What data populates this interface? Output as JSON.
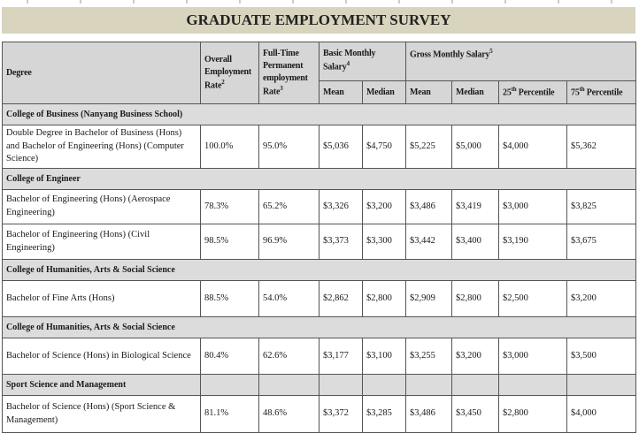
{
  "title": "GRADUATE EMPLOYMENT SURVEY",
  "headers": {
    "degree": "Degree",
    "overall": "Overall Employment Rate",
    "overall_sup": "2",
    "fulltime": "Full-Time Permanent employment Rate",
    "fulltime_sup": "3",
    "basic": "Basic Monthly Salary",
    "basic_sup": "4",
    "gross": "Gross Monthly Salary",
    "gross_sup": "5",
    "mean": "Mean",
    "median": "Median",
    "p25": "25",
    "p75": "75",
    "th": "th",
    "percentile": " Percentile"
  },
  "sections": [
    {
      "name": "College of Business (Nanyang Business School)",
      "split": false,
      "rows": [
        {
          "degree": "Double Degree in Bachelor of Business (Hons) and Bachelor of Engineering (Hons) (Computer Science)",
          "values": [
            "100.0%",
            "95.0%",
            "$5,036",
            "$4,750",
            "$5,225",
            "$5,000",
            "$4,000",
            "$5,362"
          ]
        }
      ]
    },
    {
      "name": "College of Engineer",
      "split": false,
      "rows": [
        {
          "degree": "Bachelor of Engineering (Hons) (Aerospace Engineering)",
          "values": [
            "78.3%",
            "65.2%",
            "$3,326",
            "$3,200",
            "$3,486",
            "$3,419",
            "$3,000",
            "$3,825"
          ]
        },
        {
          "degree": "Bachelor of Engineering (Hons) (Civil Engineering)",
          "values": [
            "98.5%",
            "96.9%",
            "$3,373",
            "$3,300",
            "$3,442",
            "$3,400",
            "$3,190",
            "$3,675"
          ]
        }
      ]
    },
    {
      "name": "College of Humanities, Arts & Social Science",
      "split": false,
      "rows": [
        {
          "degree": "Bachelor of Fine Arts (Hons)",
          "values": [
            "88.5%",
            "54.0%",
            "$2,862",
            "$2,800",
            "$2,909",
            "$2,800",
            "$2,500",
            "$3,200"
          ]
        }
      ]
    },
    {
      "name": "College of Humanities, Arts & Social Science",
      "split": false,
      "rows": [
        {
          "degree": "Bachelor of Science (Hons) in Biological Science",
          "values": [
            "80.4%",
            "62.6%",
            "$3,177",
            "$3,100",
            "$3,255",
            "$3,200",
            "$3,000",
            "$3,500"
          ]
        }
      ]
    },
    {
      "name": "Sport Science and Management",
      "split": true,
      "rows": [
        {
          "degree": "Bachelor of Science (Hons) (Sport Science & Management)",
          "values": [
            "81.1%",
            "48.6%",
            "$3,372",
            "$3,285",
            "$3,486",
            "$3,450",
            "$2,800",
            "$4,000"
          ]
        }
      ]
    }
  ]
}
